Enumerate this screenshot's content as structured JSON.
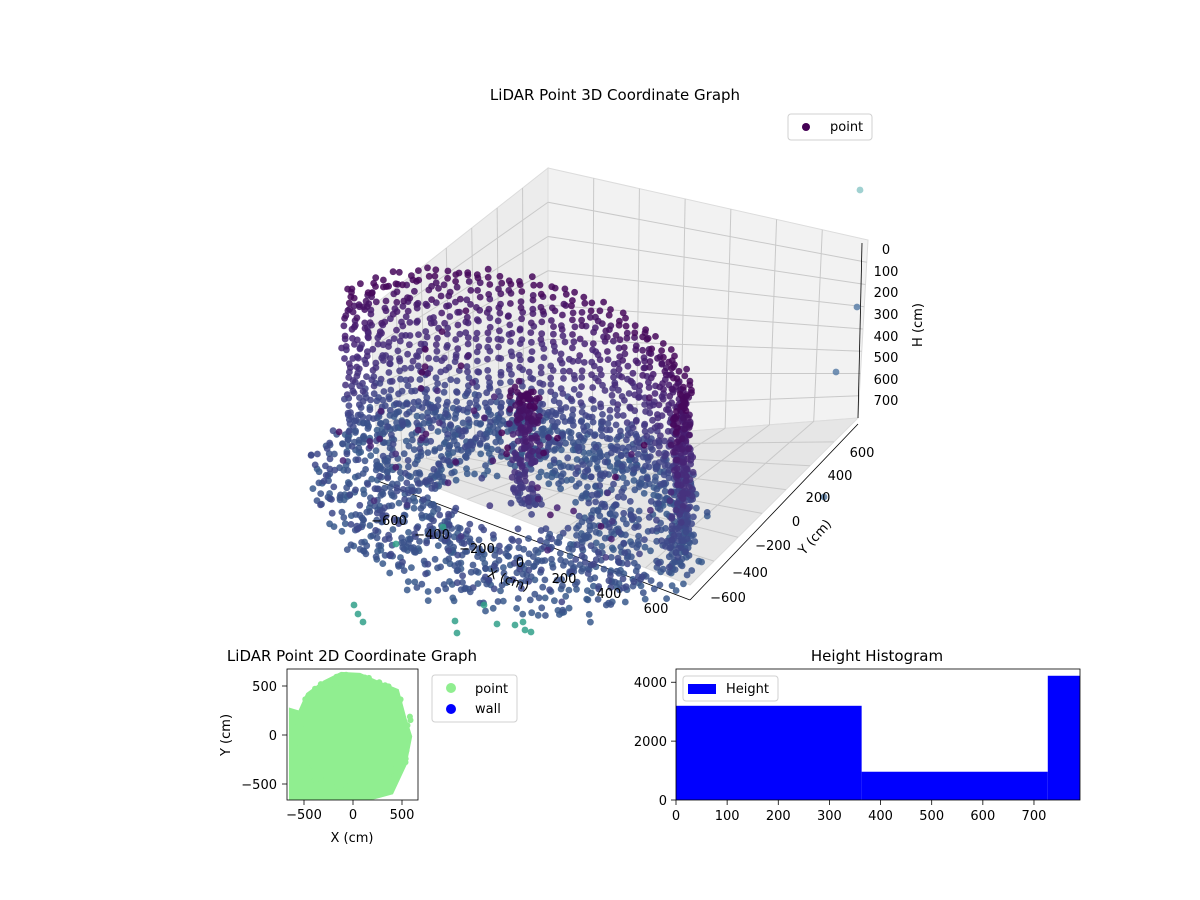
{
  "colors": {
    "point_2d": "#90ee90",
    "wall_2d": "#0000ff",
    "hist_bar": "#0000ff",
    "legend_point_3d": "#440154"
  },
  "chart_data": [
    {
      "type": "scatter3d",
      "title": "LiDAR Point 3D Coordinate Graph",
      "xlabel": "X (cm)",
      "ylabel": "Y (cm)",
      "zlabel": "H (cm)",
      "xlim": [
        -700,
        700
      ],
      "ylim": [
        -700,
        700
      ],
      "zlim": [
        750,
        0
      ],
      "xticks": [
        "−600",
        "−400",
        "−200",
        "0",
        "200",
        "400",
        "600"
      ],
      "yticks": [
        "−600",
        "−400",
        "−200",
        "0",
        "200",
        "400",
        "600"
      ],
      "zticks": [
        "0",
        "100",
        "200",
        "300",
        "400",
        "500",
        "600",
        "700"
      ],
      "colormap": "viridis",
      "legend": [
        "point"
      ],
      "legend_position": "top-right",
      "grid": true
    },
    {
      "type": "scatter",
      "title": "LiDAR Point 2D Coordinate Graph",
      "xlabel": "X (cm)",
      "ylabel": "Y (cm)",
      "xlim": [
        -680,
        680
      ],
      "ylim": [
        -680,
        680
      ],
      "xticks": [
        "−500",
        "0",
        "500"
      ],
      "yticks": [
        "500",
        "0",
        "−500"
      ],
      "legend": [
        "point",
        "wall"
      ],
      "legend_position": "outside-right",
      "series": [
        {
          "name": "point",
          "color": "#90ee90",
          "shape": "dense filled point cloud covering roughly x −650…600, y −650…650"
        },
        {
          "name": "wall",
          "color": "#0000ff",
          "points": []
        }
      ]
    },
    {
      "type": "bar",
      "title": "Height Histogram",
      "xlabel": "",
      "ylabel": "",
      "xlim": [
        0,
        790
      ],
      "ylim": [
        0,
        4450
      ],
      "xticks": [
        "0",
        "100",
        "200",
        "300",
        "400",
        "500",
        "600",
        "700"
      ],
      "yticks": [
        "0",
        "2000",
        "4000"
      ],
      "legend": [
        "Height"
      ],
      "legend_position": "top-left",
      "bins": [
        {
          "x0": 0,
          "x1": 363,
          "value": 3200
        },
        {
          "x0": 363,
          "x1": 727,
          "value": 960
        },
        {
          "x0": 727,
          "x1": 790,
          "value": 4220
        }
      ]
    }
  ]
}
